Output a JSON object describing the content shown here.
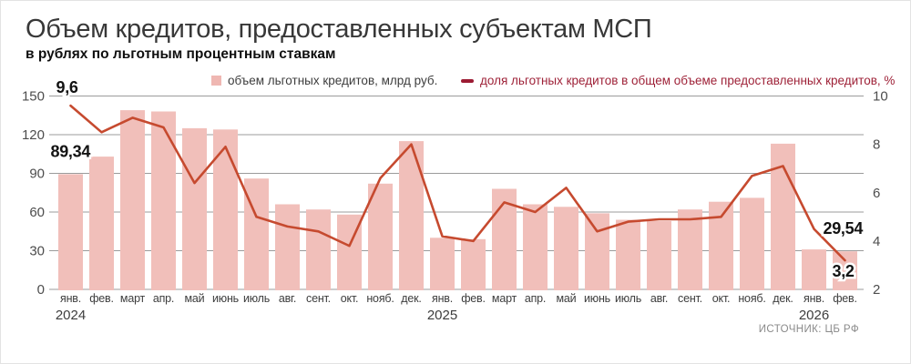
{
  "header": {
    "title": "Объем кредитов, предоставленных субъектам МСП",
    "subtitle": "в рублях по льготным процентным ставкам"
  },
  "legend": {
    "bars": {
      "label": "объем льготных кредитов, млрд руб."
    },
    "line": {
      "label": "доля льготных кредитов в общем объеме предоставленных кредитов, %"
    }
  },
  "source": "ИСТОЧНИК: ЦБ РФ",
  "colors": {
    "bar": "#f1bfba",
    "line": "#c64a2f",
    "legend_line_swatch": "#9c1b33",
    "grid": "#9b9b9b"
  },
  "chart_data": {
    "type": "bar",
    "subtype": "bar+line combo, dual axis",
    "categories": [
      "янв.",
      "фев.",
      "март",
      "апр.",
      "май",
      "июнь",
      "июль",
      "авг.",
      "сент.",
      "окт.",
      "нояб.",
      "дек.",
      "янв.",
      "фев.",
      "март",
      "апр.",
      "май",
      "июнь",
      "июль",
      "авг.",
      "сент.",
      "окт.",
      "нояб.",
      "дек.",
      "янв.",
      "фев."
    ],
    "years": [
      {
        "label": "2024",
        "index": 0
      },
      {
        "label": "2025",
        "index": 12
      },
      {
        "label": "2026",
        "index": 24
      }
    ],
    "series": [
      {
        "name": "объем льготных кредитов, млрд руб.",
        "type": "bar",
        "axis": "left",
        "values": [
          89.34,
          103,
          139,
          138,
          125,
          124,
          86,
          66,
          62,
          58,
          82,
          115,
          40,
          39,
          78,
          66,
          64,
          59,
          54,
          53,
          62,
          68,
          71,
          113,
          31,
          29.54
        ]
      },
      {
        "name": "доля льготных кредитов в общем объеме предоставленных кредитов, %",
        "type": "line",
        "axis": "right",
        "values": [
          9.6,
          8.5,
          9.1,
          8.7,
          6.4,
          7.9,
          5.0,
          4.6,
          4.4,
          3.8,
          6.6,
          8.0,
          4.2,
          4.0,
          5.6,
          5.2,
          6.2,
          4.4,
          4.8,
          4.9,
          4.9,
          5.0,
          6.7,
          7.1,
          4.5,
          3.2
        ]
      }
    ],
    "left_axis": {
      "ticks": [
        0,
        30,
        60,
        90,
        120,
        150
      ],
      "range": [
        0,
        150
      ]
    },
    "right_axis": {
      "ticks": [
        2,
        4,
        6,
        8,
        10
      ],
      "range": [
        2,
        10
      ],
      "unit": "%"
    },
    "grid": true,
    "legend_position": "top",
    "annotations": [
      {
        "text": "9,6",
        "series": "line",
        "index": 0
      },
      {
        "text": "89,34",
        "series": "bar",
        "index": 0
      },
      {
        "text": "29,54",
        "series": "bar",
        "index": 25
      },
      {
        "text": "3,2",
        "series": "line",
        "index": 25
      }
    ]
  }
}
